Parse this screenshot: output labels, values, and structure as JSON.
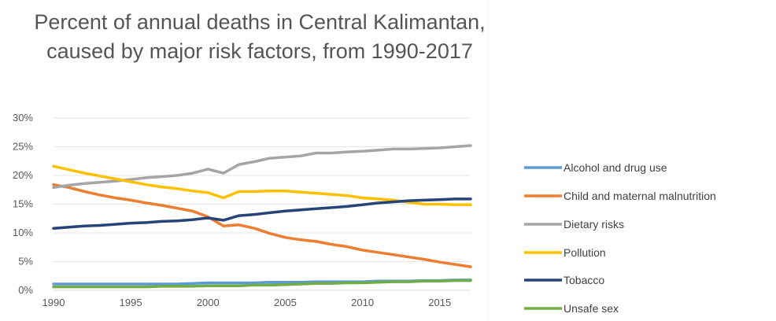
{
  "chart_data": {
    "type": "line",
    "title": "Percent of annual deaths in Central Kalimantan, caused by major risk factors, from 1990-2017",
    "xlabel": "",
    "ylabel": "",
    "x": [
      1990,
      1991,
      1992,
      1993,
      1994,
      1995,
      1996,
      1997,
      1998,
      1999,
      2000,
      2001,
      2002,
      2003,
      2004,
      2005,
      2006,
      2007,
      2008,
      2009,
      2010,
      2011,
      2012,
      2013,
      2014,
      2015,
      2016,
      2017
    ],
    "xticks": [
      1990,
      1995,
      2000,
      2005,
      2010,
      2015
    ],
    "xtick_labels": [
      "1990",
      "1995",
      "2000",
      "2005",
      "2010",
      "2015"
    ],
    "xlim": [
      1990,
      2017
    ],
    "ylim": [
      0,
      30
    ],
    "yticks": [
      0,
      5,
      10,
      15,
      20,
      25,
      30
    ],
    "ytick_labels": [
      "0%",
      "5%",
      "10%",
      "15%",
      "20%",
      "25%",
      "30%"
    ],
    "grid": true,
    "legend_position": "right",
    "series": [
      {
        "name": "Alcohol and drug use",
        "color": "#5B9BD5",
        "values": [
          1.1,
          1.1,
          1.1,
          1.1,
          1.1,
          1.1,
          1.1,
          1.1,
          1.1,
          1.2,
          1.3,
          1.3,
          1.3,
          1.3,
          1.4,
          1.4,
          1.4,
          1.5,
          1.5,
          1.5,
          1.5,
          1.6,
          1.6,
          1.6,
          1.7,
          1.7,
          1.8,
          1.8
        ]
      },
      {
        "name": "Child and maternal malnutrition",
        "color": "#ED7D31",
        "values": [
          18.4,
          17.9,
          17.2,
          16.6,
          16.1,
          15.7,
          15.2,
          14.8,
          14.3,
          13.8,
          12.8,
          11.2,
          11.4,
          10.8,
          9.9,
          9.2,
          8.8,
          8.5,
          8.0,
          7.6,
          7.0,
          6.6,
          6.2,
          5.8,
          5.4,
          4.9,
          4.5,
          4.1
        ]
      },
      {
        "name": "Dietary risks",
        "color": "#A5A5A5",
        "values": [
          17.9,
          18.3,
          18.6,
          18.8,
          19.0,
          19.3,
          19.6,
          19.8,
          20.0,
          20.4,
          21.1,
          20.4,
          21.9,
          22.4,
          23.0,
          23.2,
          23.4,
          23.9,
          23.9,
          24.1,
          24.2,
          24.4,
          24.6,
          24.6,
          24.7,
          24.8,
          25.0,
          25.2
        ]
      },
      {
        "name": "Pollution",
        "color": "#FFC000",
        "values": [
          21.6,
          21.0,
          20.4,
          19.9,
          19.4,
          18.9,
          18.4,
          18.0,
          17.7,
          17.3,
          17.0,
          16.1,
          17.2,
          17.2,
          17.3,
          17.3,
          17.1,
          16.9,
          16.7,
          16.5,
          16.1,
          15.9,
          15.7,
          15.3,
          15.0,
          15.0,
          14.9,
          14.9
        ]
      },
      {
        "name": "Tobacco",
        "color": "#264478",
        "values": [
          10.8,
          11.0,
          11.2,
          11.3,
          11.5,
          11.7,
          11.8,
          12.0,
          12.1,
          12.3,
          12.6,
          12.2,
          13.0,
          13.2,
          13.5,
          13.8,
          14.0,
          14.2,
          14.4,
          14.6,
          14.9,
          15.2,
          15.4,
          15.6,
          15.7,
          15.8,
          15.9,
          15.9
        ]
      },
      {
        "name": "Unsafe sex",
        "color": "#70AD47",
        "values": [
          0.6,
          0.6,
          0.6,
          0.6,
          0.6,
          0.6,
          0.6,
          0.7,
          0.7,
          0.7,
          0.8,
          0.8,
          0.8,
          0.9,
          0.9,
          1.0,
          1.1,
          1.2,
          1.2,
          1.3,
          1.3,
          1.4,
          1.5,
          1.5,
          1.6,
          1.6,
          1.7,
          1.7
        ]
      }
    ]
  }
}
